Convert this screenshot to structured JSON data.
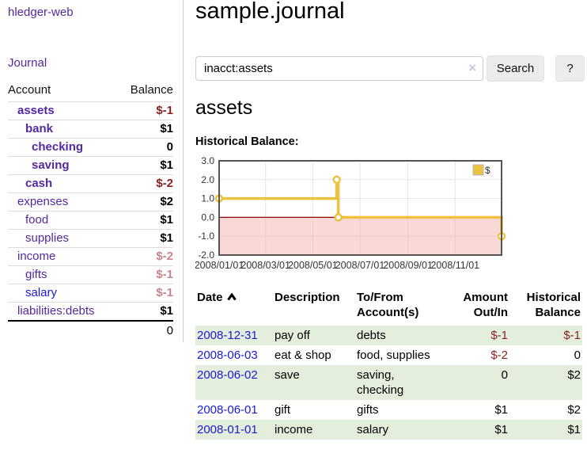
{
  "sidebar": {
    "app_title": "hledger-web",
    "nav": {
      "journal": "Journal"
    },
    "accounts_table": {
      "headers": {
        "account": "Account",
        "balance": "Balance"
      },
      "rows": [
        {
          "name": "assets",
          "balance": "$-1"
        },
        {
          "name": "bank",
          "balance": "$1"
        },
        {
          "name": "checking",
          "balance": "0"
        },
        {
          "name": "saving",
          "balance": "$1"
        },
        {
          "name": "cash",
          "balance": "$-2"
        },
        {
          "name": "expenses",
          "balance": "$2"
        },
        {
          "name": "food",
          "balance": "$1"
        },
        {
          "name": "supplies",
          "balance": "$1"
        },
        {
          "name": "income",
          "balance": "$-2"
        },
        {
          "name": "gifts",
          "balance": "$-1"
        },
        {
          "name": "salary",
          "balance": "$-1"
        },
        {
          "name": "liabilities:debts",
          "balance": "$1"
        }
      ],
      "total": "0"
    }
  },
  "header": {
    "title": "sample.journal"
  },
  "search": {
    "value": "inacct:assets",
    "clear_icon": "×",
    "button_label": "Search",
    "help_label": "?"
  },
  "account_page": {
    "title": "assets",
    "chart_label": "Historical Balance:"
  },
  "chart_data": {
    "type": "line",
    "title": "Historical Balance",
    "legend": {
      "label": "$",
      "position": "top-right"
    },
    "ylim": [
      -2,
      3
    ],
    "xlim_days": [
      0,
      365
    ],
    "grid": true,
    "y_ticks": [
      "3.0",
      "2.0",
      "1.0",
      "0.0",
      "-1.0",
      "-2.0"
    ],
    "x_ticks": [
      {
        "label": "2008/01/01",
        "day": 0
      },
      {
        "label": "2008/03/01",
        "day": 60
      },
      {
        "label": "2008/05/01",
        "day": 121
      },
      {
        "label": "2008/07/01",
        "day": 182
      },
      {
        "label": "2008/09/01",
        "day": 244
      },
      {
        "label": "2008/11/01",
        "day": 305
      }
    ],
    "series": [
      {
        "name": "$",
        "color": "#edc240",
        "step": true,
        "points": [
          {
            "date": "2008-01-01",
            "day": 0,
            "value": 1
          },
          {
            "date": "2008-06-01",
            "day": 152,
            "value": 2
          },
          {
            "date": "2008-06-03",
            "day": 154,
            "value": 0
          },
          {
            "date": "2008-12-31",
            "day": 365,
            "value": -1
          }
        ]
      }
    ],
    "negative_fill": "#f6b8b8",
    "zero_line_color": "#8b0000"
  },
  "register_table": {
    "headers": {
      "date": "Date",
      "description": "Description",
      "accounts": "To/From Account(s)",
      "amount": "Amount Out/In",
      "historical": "Historical Balance"
    },
    "rows": [
      {
        "date": "2008-12-31",
        "description": "pay off",
        "accounts": "debts",
        "amount": "$-1",
        "balance": "$-1"
      },
      {
        "date": "2008-06-03",
        "description": "eat & shop",
        "accounts": "food, supplies",
        "amount": "$-2",
        "balance": "0"
      },
      {
        "date": "2008-06-02",
        "description": "save",
        "accounts": "saving, checking",
        "amount": "0",
        "balance": "$2"
      },
      {
        "date": "2008-06-01",
        "description": "gift",
        "accounts": "gifts",
        "amount": "$1",
        "balance": "$2"
      },
      {
        "date": "2008-01-01",
        "description": "income",
        "accounts": "salary",
        "amount": "$1",
        "balance": "$1"
      }
    ]
  },
  "colors": {
    "link_purple": "#5229a0",
    "link_blue": "#1a1ad6",
    "negative_strong": "#8b1f1f",
    "negative_soft": "#c9858b",
    "row_green": "#e3efdc",
    "chart_line": "#edc240",
    "sidebar_divider": "#cccccc"
  }
}
